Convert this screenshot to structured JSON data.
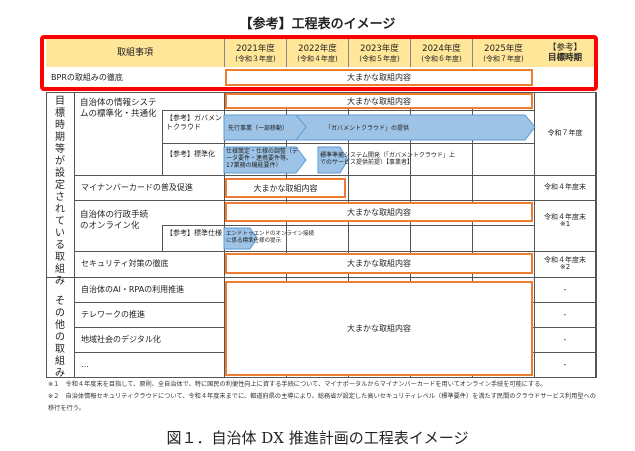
{
  "title": "【参考】工程表のイメージ",
  "header": {
    "item": "取組事項",
    "years": [
      {
        "y": "2021年度",
        "r": "(令和３年度)"
      },
      {
        "y": "2022年度",
        "r": "(令和４年度)"
      },
      {
        "y": "2023年度",
        "r": "(令和５年度)"
      },
      {
        "y": "2024年度",
        "r": "(令和６年度)"
      },
      {
        "y": "2025年度",
        "r": "(令和７年度)"
      }
    ],
    "target1": "【参考】",
    "target2": "目標時期"
  },
  "box_label": "大まかな取組内容",
  "groups": {
    "g1": "目標時期等が設定されている取組み",
    "g2": "その他の取組み"
  },
  "rows": {
    "bpr": "BPRの取組みの徹底",
    "sys": "自治体の情報システムの標準化・共通化",
    "sys_ref1": "【参考】ガバメントクラウド",
    "sys_ref2": "【参考】標準化",
    "arrow1a": "先行事業（一部移動）",
    "arrow1b": "「ガバメントクラウド」の提供",
    "arrow2a": "仕様策定・仕様の調整（データ要件・連携要件等、17業務の機能要件）",
    "arrow2b": "標準準拠システム開発（「ガバメントクラウド」上でのサービス提供前提）【事業者】",
    "sys_target": "令和７年度",
    "mynumber": "マイナンバーカードの普及促進",
    "mynumber_target": "令和４年度末",
    "online": "自治体の行政手続のオンライン化",
    "online_ref": "【参考】標準仕様",
    "arrow3": "エンドトゥエンドのオンライン接続に係る標準仕様の提示",
    "online_target": "令和４年度末",
    "online_note": "※1",
    "security": "セキュリティ対策の徹底",
    "security_target": "令和４年度末",
    "security_note": "※2",
    "ai": "自治体のAI・RPAの利用推進",
    "telework": "テレワークの推進",
    "regional": "地域社会のデジタル化",
    "etc": "…",
    "dash": "-"
  },
  "footnotes": [
    "※１　令和４年度末を目指して、原則、全自治体で、特に国民の利便性向上に資する手続について、マイナポータルからマイナンバーカードを用いてオンライン手続を可能にする。",
    "※２　自治体情報セキュリティクラウドについて、令和４年度末までに、都道府県の主導により、総務省が設定した高いセキュリティレベル（標準要件）を満たす民間のクラウドサービス利用型への移行を行う。"
  ],
  "caption": "図１．自治体 DX 推進計画の工程表イメージ",
  "colors": {
    "header": "#ffe699",
    "box": "#ed7d31",
    "arrow": "#9dc3e6",
    "highlight": "#ff0000"
  }
}
